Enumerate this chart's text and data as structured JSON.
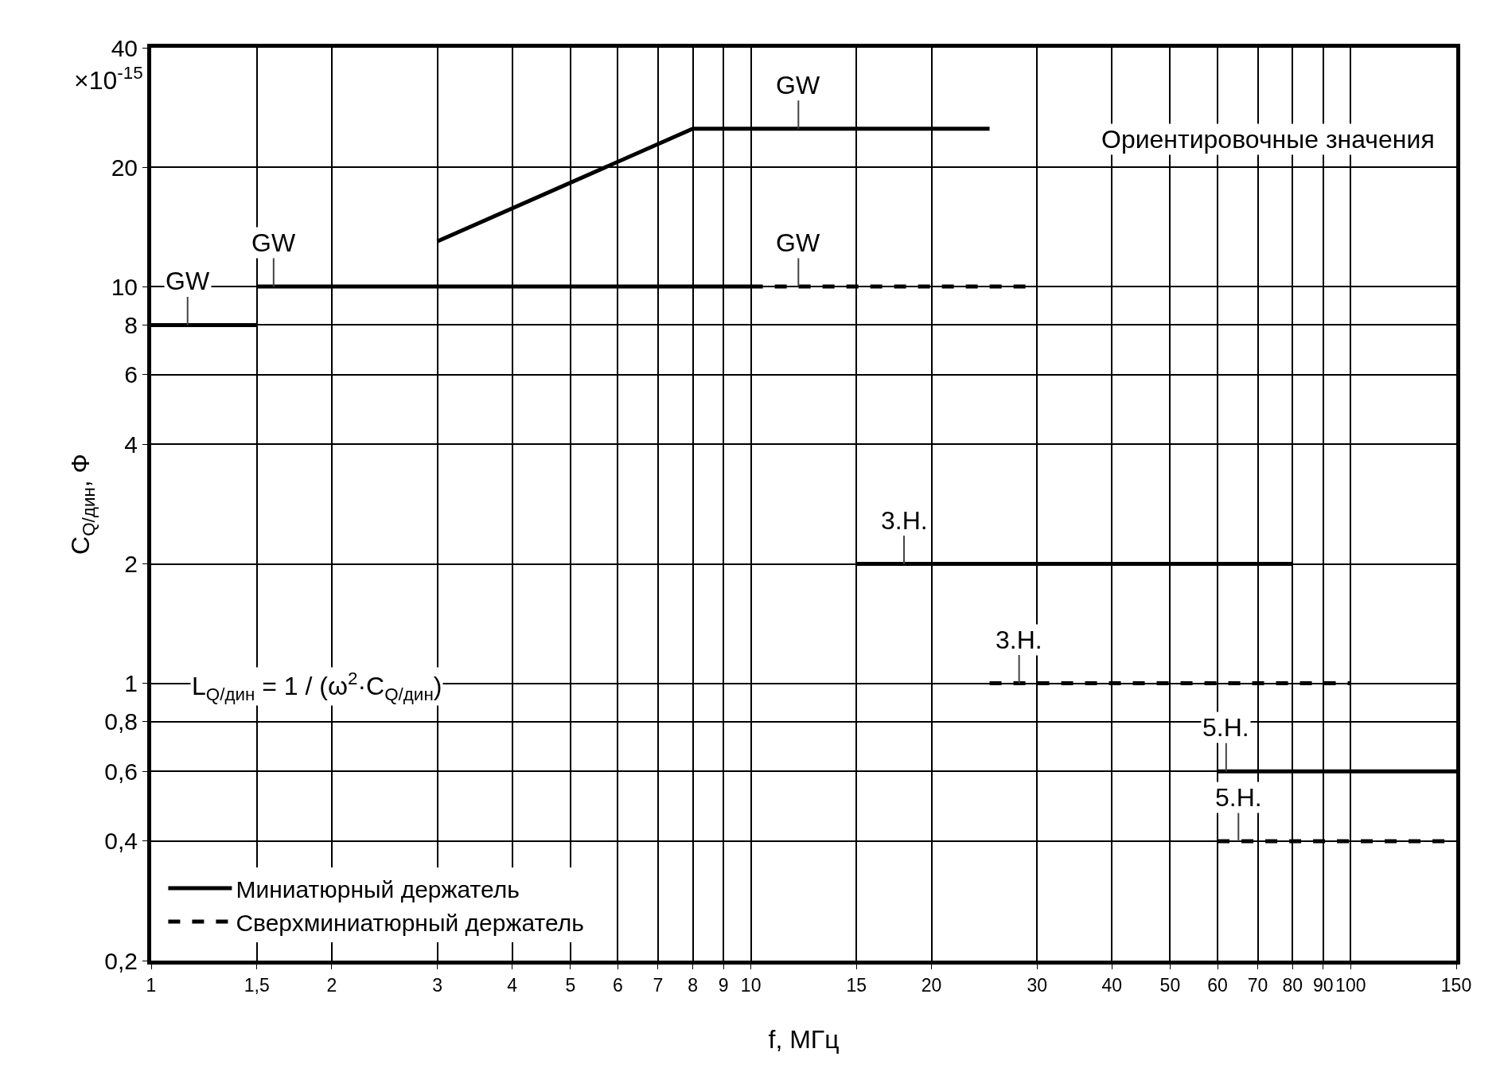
{
  "chart_data": {
    "type": "line",
    "xlabel": "f, МГц",
    "ylabel": "C$_{Q/дин}$, Ф",
    "log": "xy",
    "grid": true,
    "legend": "bottom left",
    "marker": "none",
    "xlim": [
      1,
      150
    ],
    "ylim": [
      0.2,
      40
    ],
    "xticks": [
      1,
      {
        "value": 1.5,
        "label": "1,5"
      },
      2,
      3,
      4,
      5,
      6,
      7,
      8,
      9,
      10,
      15,
      20,
      30,
      40,
      50,
      60,
      70,
      80,
      90,
      100,
      150
    ],
    "yticks": [
      {
        "value": 0.2,
        "label": "0,2"
      },
      {
        "value": 0.4,
        "label": "0,4"
      },
      {
        "value": 0.6,
        "label": "0,6"
      },
      {
        "value": 0.8,
        "label": "0,8"
      },
      1,
      2,
      4,
      6,
      8,
      10,
      20,
      40
    ],
    "series": [
      {
        "name": "Миниатюрный держатель",
        "color": "#000000",
        "line_style": "solid",
        "x": [
          1,
          1.5,
          null,
          1.5,
          10,
          null,
          3,
          8,
          25,
          null,
          15,
          80,
          null,
          60,
          150
        ],
        "values": [
          8,
          8,
          null,
          10,
          10,
          null,
          13,
          25,
          25,
          null,
          2,
          2,
          null,
          0.6,
          0.6
        ]
      },
      {
        "name": "Сверхминиатюрный держатель",
        "color": "#000000",
        "line_style": "dashed",
        "x": [
          10,
          30,
          null,
          25,
          100,
          null,
          60,
          150
        ],
        "values": [
          10,
          10,
          null,
          1,
          1,
          null,
          0.4,
          0.4
        ]
      }
    ],
    "annotations": [
      {
        "text": "GW",
        "x": 1.15,
        "y": 8
      },
      {
        "text": "GW",
        "x": 1.6,
        "y": 10
      },
      {
        "text": "GW",
        "x": 12,
        "y": 25
      },
      {
        "text": "GW",
        "x": 12,
        "y": 10
      },
      {
        "text": "3.Н.",
        "x": 18,
        "y": 2
      },
      {
        "text": "3.Н.",
        "x": 28,
        "y": 1
      },
      {
        "text": "5.Н.",
        "x": 62,
        "y": 0.6
      },
      {
        "text": "5.Н.",
        "x": 65,
        "y": 0.4
      },
      "Ориентировочные значения",
      "×10$^{-15}$",
      "L$_{Q/дин}$ = 1 / (ω$^{2}$·C$_{Q/дин}$)"
    ]
  }
}
